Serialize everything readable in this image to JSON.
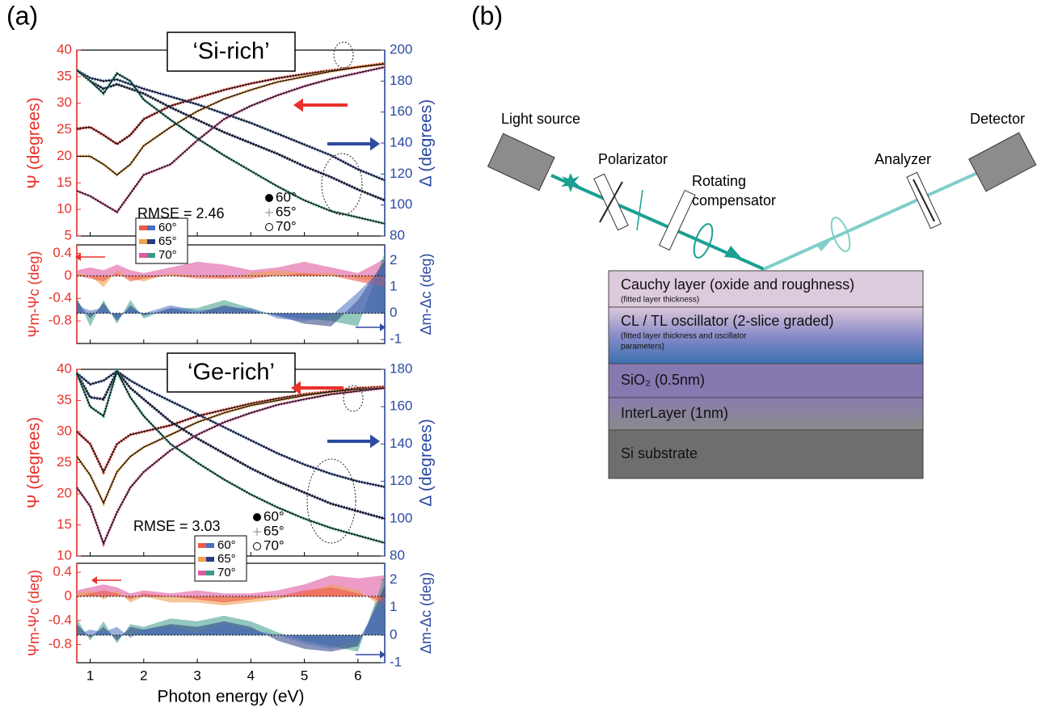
{
  "panels": [
    "(a)",
    "(b)"
  ],
  "chart_data": [
    {
      "type": "line",
      "title": "‘Si-rich’",
      "ylabel": "Ψ (degrees)",
      "y2label": "Δ (degrees)",
      "annotation": "RMSE = 2.46",
      "x": [
        0.75,
        1,
        1.25,
        1.5,
        1.75,
        2,
        2.5,
        3,
        3.5,
        4,
        4.5,
        5,
        5.5,
        6,
        6.5
      ],
      "xlim": [
        0.75,
        6.5
      ],
      "xticks": [
        1,
        2,
        3,
        4,
        5,
        6
      ],
      "ylim": [
        5,
        40
      ],
      "yticks": [
        5,
        10,
        15,
        20,
        25,
        30,
        35,
        40
      ],
      "y2lim": [
        80,
        200
      ],
      "y2ticks": [
        80,
        100,
        120,
        140,
        160,
        180,
        200
      ],
      "series": [
        {
          "name": "60°",
          "psi_color": "#e8322c",
          "delta_color": "#3a5aa8",
          "psi": [
            25.2,
            25.5,
            24,
            22.3,
            24,
            27,
            29.5,
            31,
            32.5,
            33.7,
            34.7,
            35.5,
            36.2,
            36.8,
            37.5
          ],
          "delta": [
            187,
            182,
            180,
            181,
            178,
            175,
            170,
            165,
            159,
            153,
            146,
            139,
            132,
            123,
            116
          ]
        },
        {
          "name": "65°",
          "psi_color": "#f0a040",
          "delta_color": "#2c3a70",
          "psi": [
            20,
            20,
            18.5,
            16.5,
            18.5,
            22,
            25.5,
            28.5,
            30.8,
            32.5,
            34,
            35,
            36,
            36.8,
            37.4
          ],
          "delta": [
            187,
            180,
            175,
            178,
            175,
            172,
            163,
            155,
            147,
            140,
            133,
            125,
            118,
            110,
            103
          ]
        },
        {
          "name": "70°",
          "psi_color": "#d9559a",
          "delta_color": "#3aa08c",
          "psi": [
            13.5,
            12.5,
            11,
            9.5,
            13,
            16.5,
            18.5,
            23,
            27,
            29.5,
            31.5,
            33.2,
            34.6,
            35.7,
            36.8
          ],
          "delta": [
            187,
            180,
            172,
            185,
            180,
            168,
            155,
            143,
            132,
            122,
            112,
            103,
            96,
            92,
            88
          ]
        }
      ]
    },
    {
      "type": "area",
      "ylabel": "Ψm-Ψc (deg)",
      "y2label": "Δm-Δc (deg)",
      "x": [
        0.75,
        1,
        1.25,
        1.5,
        1.75,
        2,
        2.5,
        3,
        3.5,
        4,
        4.5,
        5,
        5.5,
        6,
        6.5
      ],
      "xlim": [
        0.75,
        6.5
      ],
      "xticks": [
        1,
        2,
        3,
        4,
        5,
        6
      ],
      "ylim": [
        -1.2,
        0.55
      ],
      "yticks": [
        -0.8,
        -0.4,
        0,
        0.4
      ],
      "y2lim": [
        -1.15,
        2.6
      ],
      "y2ticks": [
        -1,
        0,
        1,
        2
      ],
      "series": [
        {
          "name": "60°",
          "psi_color": "#ef5a4a",
          "delta_color": "#4a6fc0",
          "psi": [
            0,
            -0.05,
            -0.1,
            0.05,
            -0.1,
            -0.05,
            0,
            -0.05,
            -0.05,
            -0.05,
            0,
            0.05,
            0,
            -0.1,
            -0.2
          ],
          "delta": [
            0.3,
            0.1,
            0.2,
            -0.2,
            0.2,
            0,
            0.3,
            0.1,
            0.2,
            0.2,
            -0.2,
            -0.3,
            -0.1,
            0.8,
            1.8
          ]
        },
        {
          "name": "65°",
          "psi_color": "#f0a050",
          "delta_color": "#2a3c80",
          "psi": [
            0.05,
            0,
            -0.2,
            0.1,
            -0.05,
            -0.1,
            0.05,
            0,
            -0.05,
            0.05,
            0.1,
            0.05,
            0.05,
            -0.05,
            -0.1
          ],
          "delta": [
            0.5,
            -0.2,
            0.4,
            -0.3,
            0.3,
            -0.1,
            0.2,
            0,
            0.3,
            0.1,
            -0.1,
            -0.4,
            -0.5,
            0.5,
            2
          ]
        },
        {
          "name": "70°",
          "psi_color": "#e05aa0",
          "delta_color": "#3a9a8a",
          "psi": [
            0.1,
            0.15,
            0.1,
            0.2,
            0.1,
            0.05,
            0.15,
            0.25,
            0.2,
            0.1,
            0.15,
            0.25,
            0.15,
            0.05,
            0.3
          ],
          "delta": [
            0.6,
            -0.5,
            0.5,
            -0.4,
            0.5,
            -0.2,
            0.2,
            0.2,
            0.5,
            0.2,
            -0.1,
            -0.2,
            -0.3,
            -0.5,
            2.3
          ]
        }
      ]
    },
    {
      "type": "line",
      "title": "‘Ge-rich’",
      "ylabel": "Ψ (degrees)",
      "y2label": "Δ (degrees)",
      "annotation": "RMSE = 3.03",
      "x": [
        0.75,
        1,
        1.25,
        1.5,
        1.75,
        2,
        2.5,
        3,
        3.5,
        4,
        4.5,
        5,
        5.5,
        6,
        6.5
      ],
      "xlim": [
        0.75,
        6.5
      ],
      "xticks": [
        1,
        2,
        3,
        4,
        5,
        6
      ],
      "ylim": [
        10,
        40
      ],
      "yticks": [
        10,
        15,
        20,
        25,
        30,
        35,
        40
      ],
      "y2lim": [
        80,
        180
      ],
      "y2ticks": [
        80,
        100,
        120,
        140,
        160,
        180
      ],
      "series": [
        {
          "name": "60°",
          "psi_color": "#e8322c",
          "delta_color": "#3a5aa8",
          "psi": [
            30,
            28,
            23.5,
            28,
            29.5,
            30,
            31,
            32.5,
            33.5,
            34.5,
            35.3,
            36,
            36.5,
            37,
            37.2
          ],
          "delta": [
            178,
            172,
            174,
            179,
            174,
            170,
            163,
            156,
            149,
            142,
            135,
            129,
            124,
            120,
            117
          ]
        },
        {
          "name": "65°",
          "psi_color": "#f0a040",
          "delta_color": "#2c3a70",
          "psi": [
            26,
            23,
            18.5,
            23.5,
            26,
            27.5,
            29.5,
            31.5,
            33,
            34.2,
            35,
            35.8,
            36.4,
            36.8,
            37
          ],
          "delta": [
            178,
            165,
            164,
            179,
            170,
            164,
            152,
            143,
            135,
            127,
            120,
            114,
            108,
            104,
            100
          ]
        },
        {
          "name": "70°",
          "psi_color": "#d9559a",
          "delta_color": "#3aa08c",
          "psi": [
            21,
            18,
            12,
            17,
            21,
            23.5,
            27,
            29.5,
            31.5,
            33,
            34.3,
            35.2,
            36,
            36.5,
            37
          ],
          "delta": [
            178,
            160,
            155,
            179,
            165,
            155,
            140,
            130,
            121,
            113,
            106,
            100,
            95,
            91,
            87
          ]
        }
      ]
    },
    {
      "type": "area",
      "ylabel": "Ψm-Ψc (deg)",
      "y2label": "Δm-Δc (deg)",
      "xlabel": "Photon energy (eV)",
      "x": [
        0.75,
        1,
        1.25,
        1.5,
        1.75,
        2,
        2.5,
        3,
        3.5,
        4,
        4.5,
        5,
        5.5,
        6,
        6.5
      ],
      "xlim": [
        0.75,
        6.5
      ],
      "xticks": [
        1,
        2,
        3,
        4,
        5,
        6
      ],
      "ylim": [
        -1.1,
        0.55
      ],
      "yticks": [
        -0.8,
        -0.4,
        0,
        0.4
      ],
      "y2lim": [
        -1,
        2.6
      ],
      "y2ticks": [
        -1,
        0,
        1,
        2
      ],
      "series": [
        {
          "name": "60°",
          "psi_color": "#ef5a4a",
          "delta_color": "#4a6fc0",
          "psi": [
            0,
            0.05,
            0.1,
            0.05,
            -0.05,
            0.05,
            0,
            -0.05,
            -0.1,
            -0.05,
            0,
            0.1,
            0.15,
            0.05,
            -0.1
          ],
          "delta": [
            0,
            0.2,
            0.1,
            0.3,
            -0.1,
            0.2,
            0.3,
            0.1,
            0.4,
            0.2,
            0,
            -0.3,
            -0.5,
            -0.2,
            1.5
          ]
        },
        {
          "name": "65°",
          "psi_color": "#f0a050",
          "delta_color": "#2a3c80",
          "psi": [
            0.05,
            0.1,
            -0.05,
            0.1,
            -0.1,
            0,
            -0.1,
            -0.1,
            -0.15,
            -0.1,
            -0.05,
            0.05,
            0.2,
            0.1,
            -0.2
          ],
          "delta": [
            0.4,
            -0.1,
            0.3,
            -0.2,
            0.3,
            0.2,
            0.4,
            0.3,
            0.5,
            0.3,
            -0.2,
            -0.5,
            -0.6,
            -0.4,
            1.8
          ]
        },
        {
          "name": "70°",
          "psi_color": "#e05aa0",
          "delta_color": "#3a9a8a",
          "psi": [
            0.1,
            0.15,
            0.2,
            0.15,
            0.05,
            0.1,
            0.05,
            0.1,
            0.05,
            0.05,
            0.1,
            0.2,
            0.35,
            0.3,
            0.35
          ],
          "delta": [
            0.6,
            -0.2,
            0.5,
            -0.3,
            0.4,
            0.3,
            0.6,
            0.5,
            0.7,
            0.5,
            0.1,
            -0.2,
            -0.4,
            -0.6,
            2.2
          ]
        }
      ]
    }
  ],
  "diagram": {
    "labels": {
      "light_source": "Light source",
      "polarizator": "Polarizator",
      "compensator": [
        "Rotating",
        "compensator"
      ],
      "analyzer": "Analyzer",
      "detector": "Detector"
    },
    "layers": [
      {
        "name": "Cauchy layer (oxide and roughness)",
        "notes": [
          "(fitted layer thickness)"
        ]
      },
      {
        "name": "CL / TL oscillator (2-slice graded)",
        "notes": [
          "(fitted layer thickness and oscillator",
          "parameters)"
        ]
      },
      {
        "name": "SiO₂ (0.5nm)"
      },
      {
        "name": "InterLayer (1nm)"
      },
      {
        "name": "Si substrate"
      }
    ]
  }
}
